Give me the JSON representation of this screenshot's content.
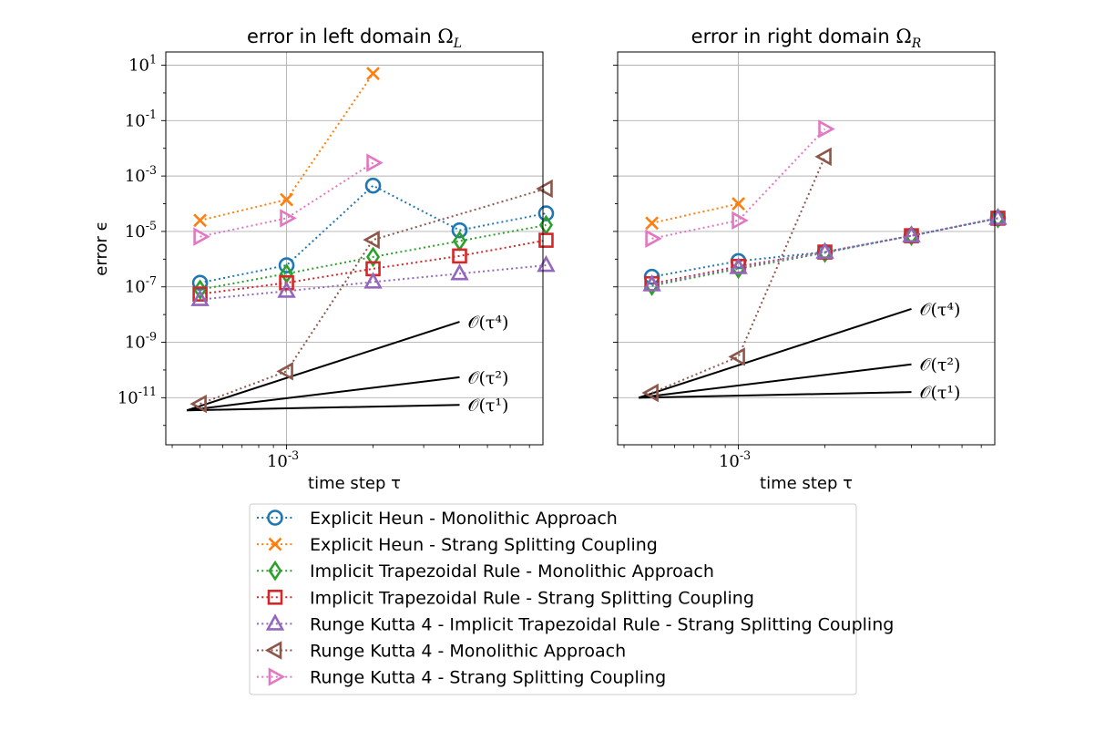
{
  "chart_data": [
    {
      "type": "line",
      "title": "error in left domain Ω_L",
      "xlabel": "time step τ",
      "ylabel": "error ϵ",
      "xscale": "log",
      "yscale": "log",
      "xlim": [
        0.00038,
        0.0078
      ],
      "ylim": [
        2e-13,
        30.0
      ],
      "x_tick_labels": [
        "10^-3"
      ],
      "y_tick_labels": [
        "10^1",
        "10^-1",
        "10^-3",
        "10^-5",
        "10^-7",
        "10^-9",
        "10^-11"
      ],
      "grid": true,
      "series": [
        {
          "name": "Explicit Heun - Monolithic Approach",
          "color": "#1f77b4",
          "marker": "circle",
          "x": [
            0.0005,
            0.001,
            0.002,
            0.004,
            0.008
          ],
          "y": [
            1.4e-07,
            6e-07,
            0.00045,
            1.1e-05,
            4.5e-05
          ]
        },
        {
          "name": "Explicit Heun - Strang Splitting Coupling",
          "color": "#ff7f0e",
          "marker": "x",
          "x": [
            0.0005,
            0.001,
            0.002
          ],
          "y": [
            2.5e-05,
            0.00014,
            5
          ]
        },
        {
          "name": "Implicit Trapezoidal Rule - Monolithic Approach",
          "color": "#2ca02c",
          "marker": "diamond",
          "x": [
            0.0005,
            0.001,
            0.002,
            0.004,
            0.008
          ],
          "y": [
            8e-08,
            3e-07,
            1.2e-06,
            4.5e-06,
            1.7e-05
          ]
        },
        {
          "name": "Implicit Trapezoidal Rule - Strang Splitting Coupling",
          "color": "#d62728",
          "marker": "square",
          "x": [
            0.0005,
            0.001,
            0.002,
            0.004,
            0.008
          ],
          "y": [
            5.5e-08,
            1.4e-07,
            4.5e-07,
            1.3e-06,
            4.8e-06
          ]
        },
        {
          "name": "Runge Kutta 4 - Implicit Trapezoidal Rule - Strang Splitting Coupling",
          "color": "#9467bd",
          "marker": "triangle-up",
          "x": [
            0.0005,
            0.001,
            0.002,
            0.004,
            0.008
          ],
          "y": [
            3.5e-08,
            7e-08,
            1.5e-07,
            3e-07,
            6e-07
          ]
        },
        {
          "name": "Runge Kutta 4 - Monolithic Approach",
          "color": "#8c564b",
          "marker": "triangle-left",
          "x": [
            0.0005,
            0.001,
            0.002,
            0.008
          ],
          "y": [
            6e-12,
            9e-11,
            5e-06,
            0.00035
          ]
        },
        {
          "name": "Runge Kutta 4 - Strang Splitting Coupling",
          "color": "#e377c2",
          "marker": "triangle-right",
          "x": [
            0.0005,
            0.001,
            0.002
          ],
          "y": [
            6.5e-06,
            3e-05,
            0.003
          ]
        }
      ],
      "reference_lines": [
        {
          "label": "𝒪(τ⁴)",
          "x": [
            0.00045,
            0.004
          ],
          "y": [
            3.5e-12,
            5.5e-09
          ]
        },
        {
          "label": "𝒪(τ²)",
          "x": [
            0.00045,
            0.004
          ],
          "y": [
            3.5e-12,
            5.5e-11
          ]
        },
        {
          "label": "𝒪(τ¹)",
          "x": [
            0.00045,
            0.004
          ],
          "y": [
            3.5e-12,
            5.5e-12
          ]
        }
      ]
    },
    {
      "type": "line",
      "title": "error in right domain Ω_R",
      "xlabel": "time step τ",
      "ylabel": "",
      "xscale": "log",
      "yscale": "log",
      "xlim": [
        0.00038,
        0.0078
      ],
      "ylim": [
        2e-13,
        30.0
      ],
      "x_tick_labels": [
        "10^-3"
      ],
      "grid": true,
      "series": [
        {
          "name": "Explicit Heun - Monolithic Approach",
          "color": "#1f77b4",
          "marker": "circle",
          "x": [
            0.0005,
            0.001,
            0.002,
            0.004,
            0.008
          ],
          "y": [
            2.3e-07,
            8.5e-07,
            1.8e-06,
            7e-06,
            3e-05
          ]
        },
        {
          "name": "Explicit Heun - Strang Splitting Coupling",
          "color": "#ff7f0e",
          "marker": "x",
          "x": [
            0.0005,
            0.001
          ],
          "y": [
            2e-05,
            0.0001
          ]
        },
        {
          "name": "Implicit Trapezoidal Rule - Monolithic Approach",
          "color": "#2ca02c",
          "marker": "diamond",
          "x": [
            0.0005,
            0.001,
            0.002,
            0.004,
            0.008
          ],
          "y": [
            1.1e-07,
            4.5e-07,
            1.7e-06,
            7e-06,
            3e-05
          ]
        },
        {
          "name": "Implicit Trapezoidal Rule - Strang Splitting Coupling",
          "color": "#d62728",
          "marker": "square",
          "x": [
            0.0005,
            0.001,
            0.002,
            0.004,
            0.008
          ],
          "y": [
            1.3e-07,
            5.5e-07,
            1.8e-06,
            7e-06,
            3e-05
          ]
        },
        {
          "name": "Runge Kutta 4 - Implicit Trapezoidal Rule - Strang Splitting Coupling",
          "color": "#9467bd",
          "marker": "triangle-up",
          "x": [
            0.0005,
            0.001,
            0.002,
            0.004,
            0.008
          ],
          "y": [
            1.2e-07,
            5e-07,
            1.8e-06,
            7e-06,
            3e-05
          ]
        },
        {
          "name": "Runge Kutta 4 - Monolithic Approach",
          "color": "#8c564b",
          "marker": "triangle-left",
          "x": [
            0.0005,
            0.001,
            0.002
          ],
          "y": [
            1.5e-11,
            3e-10,
            0.005
          ]
        },
        {
          "name": "Runge Kutta 4 - Strang Splitting Coupling",
          "color": "#e377c2",
          "marker": "triangle-right",
          "x": [
            0.0005,
            0.001,
            0.002
          ],
          "y": [
            5.5e-06,
            2.5e-05,
            0.05
          ]
        }
      ],
      "reference_lines": [
        {
          "label": "𝒪(τ⁴)",
          "x": [
            0.00045,
            0.004
          ],
          "y": [
            1e-11,
            1.6e-08
          ]
        },
        {
          "label": "𝒪(τ²)",
          "x": [
            0.00045,
            0.004
          ],
          "y": [
            1e-11,
            1.6e-10
          ]
        },
        {
          "label": "𝒪(τ¹)",
          "x": [
            0.00045,
            0.004
          ],
          "y": [
            1e-11,
            1.6e-11
          ]
        }
      ]
    }
  ],
  "legend": {
    "placement": "bottom-center",
    "entries": [
      "Explicit Heun - Monolithic Approach",
      "Explicit Heun - Strang Splitting Coupling",
      "Implicit Trapezoidal Rule - Monolithic Approach",
      "Implicit Trapezoidal Rule - Strang Splitting Coupling",
      "Runge Kutta 4 - Implicit Trapezoidal Rule - Strang Splitting Coupling",
      "Runge Kutta 4 - Monolithic Approach",
      "Runge Kutta 4 - Strang Splitting Coupling"
    ]
  }
}
